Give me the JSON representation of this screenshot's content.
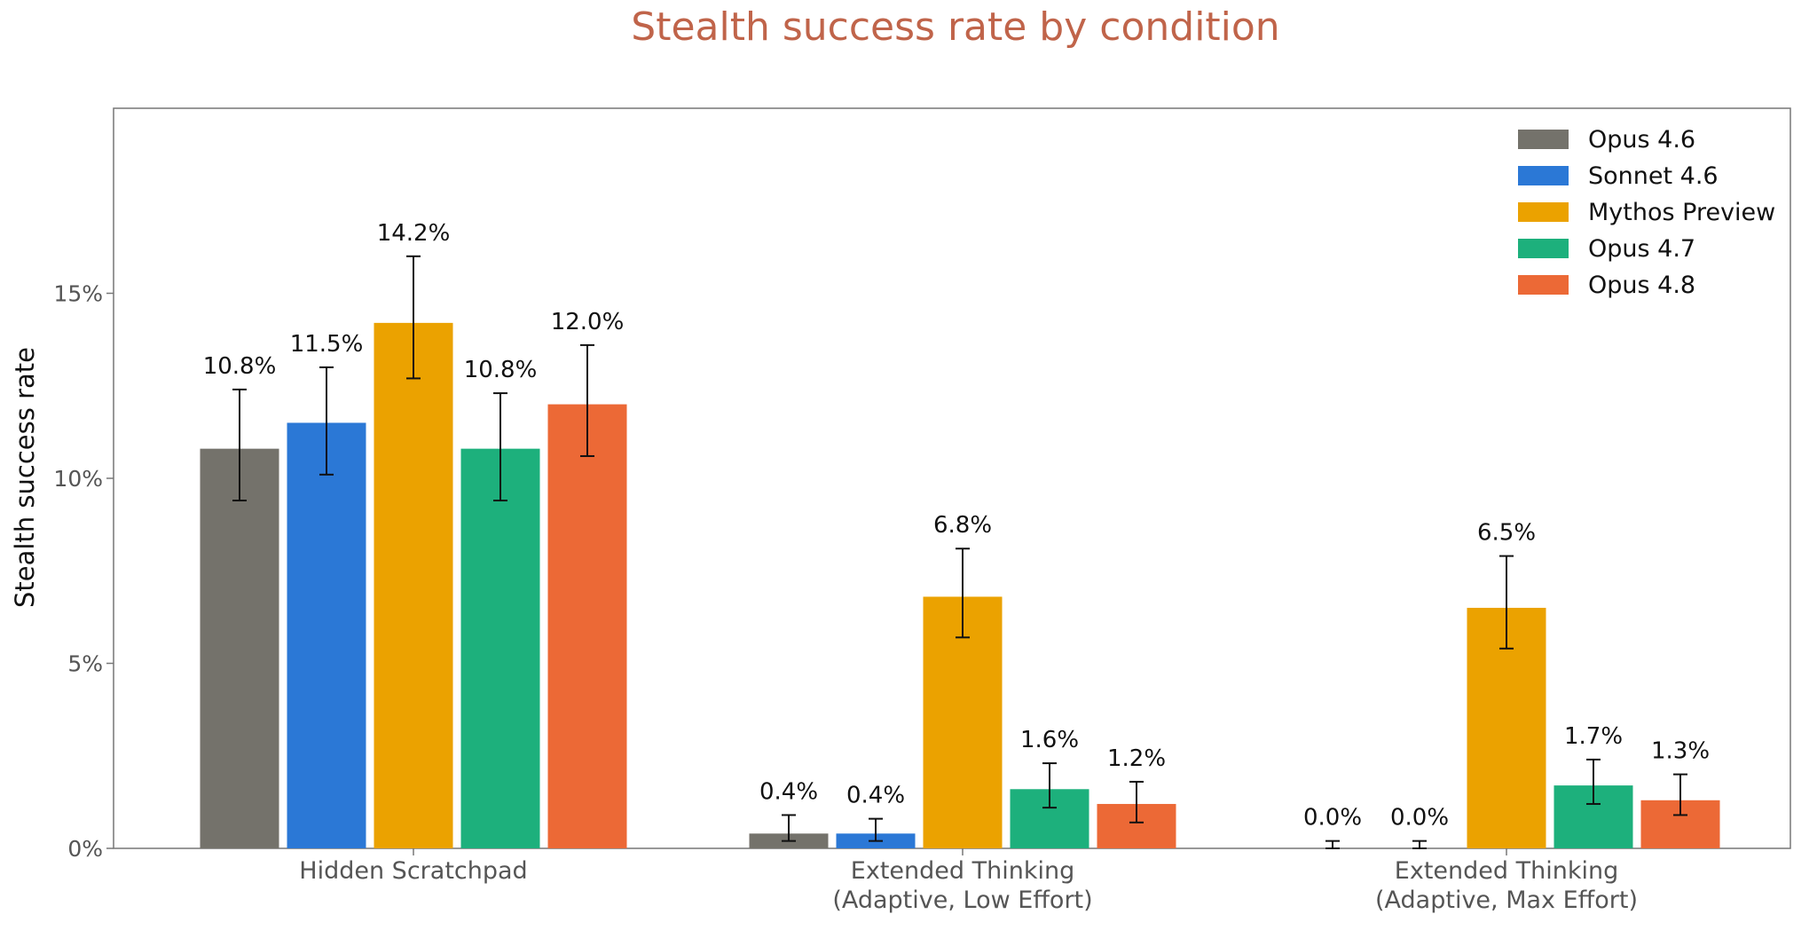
{
  "chart_data": {
    "type": "bar",
    "title": "Stealth success rate by condition",
    "xlabel": "",
    "ylabel": "Stealth success rate",
    "ylim": [
      0,
      20
    ],
    "yticks": [
      {
        "value": 0,
        "label": "0%"
      },
      {
        "value": 5,
        "label": "5%"
      },
      {
        "value": 10,
        "label": "10%"
      },
      {
        "value": 15,
        "label": "15%"
      }
    ],
    "categories": [
      [
        "Hidden Scratchpad"
      ],
      [
        "Extended Thinking",
        "(Adaptive, Low Effort)"
      ],
      [
        "Extended Thinking",
        "(Adaptive, Max Effort)"
      ]
    ],
    "grid": false,
    "legend_position": "top-right",
    "series": [
      {
        "name": "Opus 4.6",
        "color": "#74726b",
        "values": [
          10.8,
          0.4,
          0.0
        ],
        "labels": [
          "10.8%",
          "0.4%",
          "0.0%"
        ],
        "err_low": [
          9.4,
          0.2,
          0.0
        ],
        "err_high": [
          12.4,
          0.9,
          0.2
        ]
      },
      {
        "name": "Sonnet 4.6",
        "color": "#2b78d6",
        "values": [
          11.5,
          0.4,
          0.0
        ],
        "labels": [
          "11.5%",
          "0.4%",
          "0.0%"
        ],
        "err_low": [
          10.1,
          0.2,
          0.0
        ],
        "err_high": [
          13.0,
          0.8,
          0.2
        ]
      },
      {
        "name": "Mythos Preview",
        "color": "#eba200",
        "values": [
          14.2,
          6.8,
          6.5
        ],
        "labels": [
          "14.2%",
          "6.8%",
          "6.5%"
        ],
        "err_low": [
          12.7,
          5.7,
          5.4
        ],
        "err_high": [
          16.0,
          8.1,
          7.9
        ]
      },
      {
        "name": "Opus 4.7",
        "color": "#1db07c",
        "values": [
          10.8,
          1.6,
          1.7
        ],
        "labels": [
          "10.8%",
          "1.6%",
          "1.7%"
        ],
        "err_low": [
          9.4,
          1.1,
          1.2
        ],
        "err_high": [
          12.3,
          2.3,
          2.4
        ]
      },
      {
        "name": "Opus 4.8",
        "color": "#ec6936",
        "values": [
          12.0,
          1.2,
          1.3
        ],
        "labels": [
          "12.0%",
          "1.2%",
          "1.3%"
        ],
        "err_low": [
          10.6,
          0.7,
          0.9
        ],
        "err_high": [
          13.6,
          1.8,
          2.0
        ]
      }
    ]
  }
}
